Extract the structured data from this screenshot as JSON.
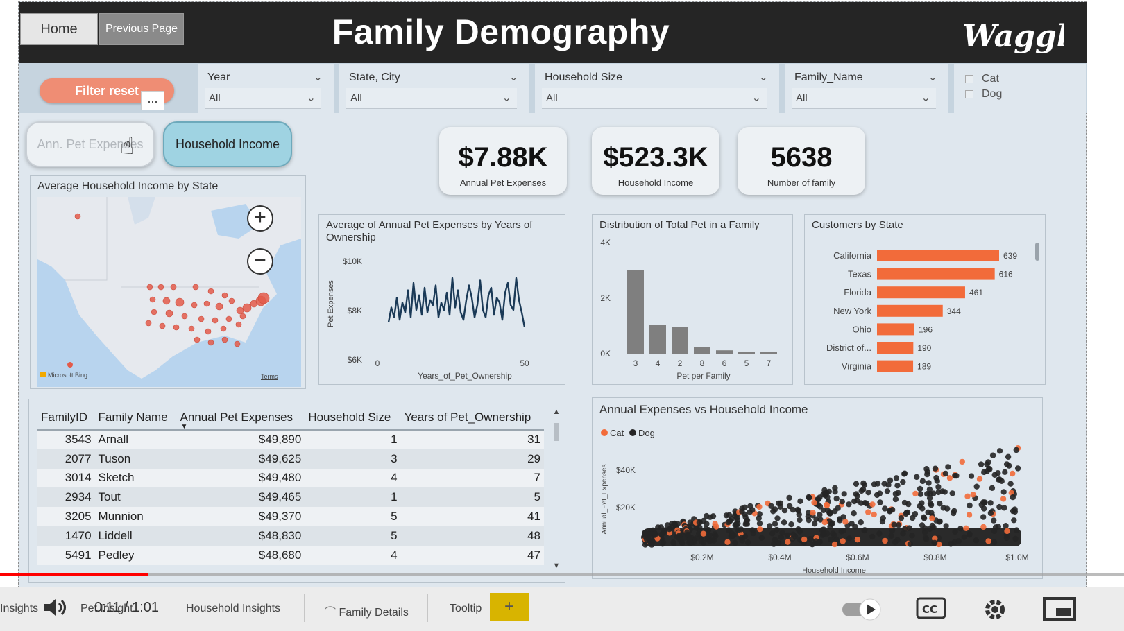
{
  "header": {
    "home_label": "Home",
    "prev_label": "Previous Page",
    "title": "Family Demography",
    "logo_text": "Waggle"
  },
  "filters": {
    "reset_label": "Filter reset",
    "more_label": "...",
    "slicers": [
      {
        "label": "Year",
        "value": "All"
      },
      {
        "label": "State, City",
        "value": "All"
      },
      {
        "label": "Household Size",
        "value": "All"
      },
      {
        "label": "Family_Name",
        "value": "All"
      }
    ],
    "pet_options": [
      "Cat",
      "Dog"
    ]
  },
  "toggles": {
    "pet_expenses": "Ann. Pet Expenses",
    "household_income": "Household Income"
  },
  "kpis": [
    {
      "value": "$7.88K",
      "label": "Annual Pet Expenses"
    },
    {
      "value": "$523.3K",
      "label": "Household Income"
    },
    {
      "value": "5638",
      "label": "Number of family"
    }
  ],
  "map": {
    "title": "Average Household Income by State",
    "zoom_in": "+",
    "zoom_out": "−",
    "attribution": "Microsoft Bing",
    "terms": "Terms"
  },
  "line_chart": {
    "title": "Average of Annual Pet Expenses by Years of Ownership",
    "type": "line",
    "xlabel": "Years_of_Pet_Ownership",
    "ylabel": "Pet Expenses",
    "ytick_labels": [
      "$10K",
      "$8K",
      "$6K"
    ],
    "xtick_labels": [
      "0",
      "50"
    ],
    "ylim": [
      6000,
      10000
    ],
    "xlim": [
      0,
      50
    ],
    "x": [
      1,
      2,
      3,
      4,
      5,
      6,
      7,
      8,
      9,
      10,
      11,
      12,
      13,
      14,
      15,
      16,
      17,
      18,
      19,
      20,
      21,
      22,
      23,
      24,
      25,
      26,
      27,
      28,
      29,
      30,
      31,
      32,
      33,
      34,
      35,
      36,
      37,
      38,
      39,
      40,
      41,
      42,
      43,
      44,
      45,
      46,
      47,
      48,
      49,
      50
    ],
    "y": [
      7500,
      8100,
      7700,
      8500,
      7600,
      8300,
      7900,
      8800,
      7700,
      9100,
      8000,
      8600,
      7800,
      8900,
      7900,
      8400,
      8200,
      9000,
      7700,
      8300,
      8000,
      8700,
      7800,
      9300,
      8100,
      8800,
      7900,
      7600,
      8400,
      9000,
      8500,
      7700,
      8200,
      9200,
      8000,
      7700,
      8600,
      8900,
      7800,
      8500,
      8300,
      7600,
      8700,
      9100,
      8200,
      8000,
      9300,
      8400,
      7900,
      7300
    ],
    "color": "#1b3a57"
  },
  "bar_chart": {
    "title": "Distribution of Total Pet in a Family",
    "type": "bar",
    "xlabel": "Pet per Family",
    "ytick_labels": [
      "4K",
      "2K",
      "0K"
    ],
    "ylim": [
      0,
      4000
    ],
    "categories": [
      "3",
      "4",
      "2",
      "8",
      "6",
      "5",
      "7"
    ],
    "values": [
      3000,
      1050,
      950,
      250,
      120,
      60,
      60
    ],
    "color": "#7f7f7f"
  },
  "hbar_chart": {
    "title": "Customers by State",
    "type": "bar",
    "categories": [
      "California",
      "Texas",
      "Florida",
      "New York",
      "Ohio",
      "District of...",
      "Virginia"
    ],
    "values": [
      639,
      616,
      461,
      344,
      196,
      190,
      189
    ],
    "value_labels": [
      "639",
      "616",
      "461",
      "344",
      "196",
      "190",
      "189"
    ],
    "color": "#f26b3a"
  },
  "scatter": {
    "title": "Annual Expenses vs Household Income",
    "type": "scatter",
    "xlabel": "Household Income",
    "ylabel": "Annual_Pet_Expenses",
    "xtick_labels": [
      "$0.2M",
      "$0.4M",
      "$0.6M",
      "$0.8M",
      "$1.0M"
    ],
    "ytick_labels": [
      "$40K",
      "$20K"
    ],
    "legend": [
      {
        "name": "Cat",
        "color": "#f26b3a"
      },
      {
        "name": "Dog",
        "color": "#252525"
      }
    ]
  },
  "table": {
    "columns": [
      "FamilyID",
      "Family Name",
      "Annual Pet Expenses",
      "Household Size",
      "Years of Pet_Ownership"
    ],
    "rows": [
      [
        "3543",
        "Arnall",
        "$49,890",
        "1",
        "31"
      ],
      [
        "2077",
        "Tuson",
        "$49,625",
        "3",
        "29"
      ],
      [
        "3014",
        "Sketch",
        "$49,480",
        "4",
        "7"
      ],
      [
        "2934",
        "Tout",
        "$49,465",
        "1",
        "5"
      ],
      [
        "3205",
        "Munnion",
        "$49,370",
        "5",
        "41"
      ],
      [
        "1470",
        "Liddell",
        "$48,830",
        "5",
        "48"
      ],
      [
        "5491",
        "Pedley",
        "$48,680",
        "4",
        "47"
      ]
    ]
  },
  "player": {
    "time": "0:11 / 1:01",
    "progress": 0.18,
    "tabs": [
      "Insights",
      "Pet Insight",
      "Household Insights",
      "Family Details",
      "Tooltip"
    ],
    "add_tab": "+"
  }
}
